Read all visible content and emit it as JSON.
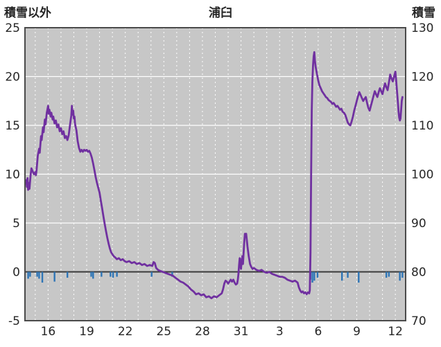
{
  "chart_data": {
    "type": "line",
    "title": "浦臼",
    "left_axis": {
      "label": "積雪以外",
      "min": -5,
      "max": 25,
      "ticks": [
        25,
        20,
        15,
        10,
        5,
        0,
        -5
      ]
    },
    "right_axis": {
      "label": "積雪",
      "min": 70,
      "max": 130,
      "ticks": [
        130,
        120,
        110,
        100,
        90,
        80,
        70
      ]
    },
    "axes_relation": "right_value = 2 * left_value + 80 (both axes share the same plot span)",
    "x_axis": {
      "tick_labels": [
        "16",
        "19",
        "22",
        "25",
        "28",
        "31",
        "3",
        "6",
        "9",
        "12"
      ],
      "tick_positions": [
        16,
        19,
        22,
        25,
        28,
        31,
        34,
        37,
        40,
        43
      ],
      "domain": [
        14.2,
        43.8
      ],
      "gridline_step": 1,
      "note": "day numbers; 16..31 = December, 3..12 = January (34=Jan3, 37=Jan6, 40=Jan9, 43=Jan12)"
    },
    "grid": {
      "vertical": "dashed white, daily",
      "horizontal": "solid white every 5 left-units",
      "zero_line": "dark solid at left-axis 0"
    },
    "series": [
      {
        "name": "積雪 (snow depth, read on right axis)",
        "color": "#7030a0",
        "units": "values stored in left-axis units; snow depth cm = 2*value + 80",
        "points": [
          [
            14.3,
            9.4
          ],
          [
            14.35,
            8.7
          ],
          [
            14.4,
            9.6
          ],
          [
            14.45,
            8.4
          ],
          [
            14.5,
            9.1
          ],
          [
            14.55,
            8.5
          ],
          [
            14.6,
            9.3
          ],
          [
            14.65,
            10.0
          ],
          [
            14.7,
            10.6
          ],
          [
            14.8,
            10.3
          ],
          [
            14.9,
            10.0
          ],
          [
            15.0,
            10.2
          ],
          [
            15.05,
            9.9
          ],
          [
            15.1,
            10.4
          ],
          [
            15.2,
            11.9
          ],
          [
            15.3,
            12.6
          ],
          [
            15.35,
            12.2
          ],
          [
            15.45,
            13.9
          ],
          [
            15.5,
            13.5
          ],
          [
            15.6,
            14.8
          ],
          [
            15.65,
            14.3
          ],
          [
            15.75,
            15.6
          ],
          [
            15.8,
            15.1
          ],
          [
            15.9,
            16.3
          ],
          [
            16.0,
            17.0
          ],
          [
            16.05,
            16.2
          ],
          [
            16.1,
            16.6
          ],
          [
            16.2,
            15.9
          ],
          [
            16.25,
            16.3
          ],
          [
            16.35,
            15.6
          ],
          [
            16.4,
            15.9
          ],
          [
            16.5,
            15.2
          ],
          [
            16.6,
            15.5
          ],
          [
            16.7,
            14.8
          ],
          [
            16.8,
            15.1
          ],
          [
            16.9,
            14.4
          ],
          [
            17.0,
            14.7
          ],
          [
            17.1,
            14.1
          ],
          [
            17.2,
            14.4
          ],
          [
            17.3,
            13.7
          ],
          [
            17.4,
            13.9
          ],
          [
            17.5,
            13.5
          ],
          [
            17.6,
            14.0
          ],
          [
            17.7,
            15.0
          ],
          [
            17.8,
            16.0
          ],
          [
            17.85,
            17.0
          ],
          [
            17.9,
            16.1
          ],
          [
            17.95,
            16.5
          ],
          [
            18.0,
            15.7
          ],
          [
            18.05,
            15.9
          ],
          [
            18.1,
            15.1
          ],
          [
            18.2,
            14.5
          ],
          [
            18.3,
            13.4
          ],
          [
            18.4,
            12.7
          ],
          [
            18.5,
            12.3
          ],
          [
            18.6,
            12.5
          ],
          [
            18.7,
            12.3
          ],
          [
            18.8,
            12.5
          ],
          [
            18.9,
            12.4
          ],
          [
            19.0,
            12.5
          ],
          [
            19.1,
            12.3
          ],
          [
            19.2,
            12.4
          ],
          [
            19.3,
            12.1
          ],
          [
            19.4,
            11.7
          ],
          [
            19.5,
            11.1
          ],
          [
            19.6,
            10.4
          ],
          [
            19.7,
            9.7
          ],
          [
            19.8,
            9.1
          ],
          [
            19.9,
            8.6
          ],
          [
            20.0,
            8.1
          ],
          [
            20.1,
            7.3
          ],
          [
            20.2,
            6.5
          ],
          [
            20.3,
            5.7
          ],
          [
            20.4,
            4.9
          ],
          [
            20.5,
            4.2
          ],
          [
            20.6,
            3.5
          ],
          [
            20.7,
            2.9
          ],
          [
            20.8,
            2.4
          ],
          [
            20.9,
            2.0
          ],
          [
            21.0,
            1.8
          ],
          [
            21.1,
            1.6
          ],
          [
            21.2,
            1.5
          ],
          [
            21.35,
            1.3
          ],
          [
            21.5,
            1.4
          ],
          [
            21.65,
            1.2
          ],
          [
            21.8,
            1.3
          ],
          [
            21.95,
            1.1
          ],
          [
            22.1,
            1.0
          ],
          [
            22.3,
            1.1
          ],
          [
            22.5,
            0.9
          ],
          [
            22.7,
            1.0
          ],
          [
            22.9,
            0.8
          ],
          [
            23.1,
            0.9
          ],
          [
            23.3,
            0.7
          ],
          [
            23.5,
            0.8
          ],
          [
            23.7,
            0.6
          ],
          [
            23.9,
            0.7
          ],
          [
            24.1,
            0.6
          ],
          [
            24.2,
            1.0
          ],
          [
            24.3,
            0.9
          ],
          [
            24.4,
            0.4
          ],
          [
            24.55,
            0.2
          ],
          [
            24.7,
            0.1
          ],
          [
            24.9,
            0.0
          ],
          [
            25.1,
            -0.1
          ],
          [
            25.3,
            -0.2
          ],
          [
            25.5,
            -0.3
          ],
          [
            25.7,
            -0.4
          ],
          [
            25.9,
            -0.6
          ],
          [
            26.1,
            -0.8
          ],
          [
            26.3,
            -1.0
          ],
          [
            26.5,
            -1.1
          ],
          [
            26.7,
            -1.3
          ],
          [
            26.9,
            -1.5
          ],
          [
            27.1,
            -1.8
          ],
          [
            27.3,
            -2.0
          ],
          [
            27.5,
            -2.3
          ],
          [
            27.7,
            -2.2
          ],
          [
            27.9,
            -2.4
          ],
          [
            28.1,
            -2.3
          ],
          [
            28.3,
            -2.6
          ],
          [
            28.5,
            -2.5
          ],
          [
            28.7,
            -2.7
          ],
          [
            28.9,
            -2.5
          ],
          [
            29.1,
            -2.6
          ],
          [
            29.3,
            -2.4
          ],
          [
            29.5,
            -2.2
          ],
          [
            29.6,
            -1.8
          ],
          [
            29.7,
            -1.2
          ],
          [
            29.8,
            -0.9
          ],
          [
            29.9,
            -1.0
          ],
          [
            30.0,
            -1.2
          ],
          [
            30.1,
            -1.0
          ],
          [
            30.2,
            -0.8
          ],
          [
            30.3,
            -1.0
          ],
          [
            30.4,
            -0.8
          ],
          [
            30.5,
            -1.1
          ],
          [
            30.6,
            -1.3
          ],
          [
            30.7,
            -1.2
          ],
          [
            30.75,
            -0.8
          ],
          [
            30.8,
            -0.2
          ],
          [
            30.85,
            0.7
          ],
          [
            30.9,
            1.4
          ],
          [
            30.95,
            0.7
          ],
          [
            31.0,
            0.3
          ],
          [
            31.05,
            1.1
          ],
          [
            31.1,
            1.6
          ],
          [
            31.15,
            0.8
          ],
          [
            31.2,
            1.9
          ],
          [
            31.25,
            3.0
          ],
          [
            31.3,
            3.9
          ],
          [
            31.35,
            3.7
          ],
          [
            31.4,
            3.9
          ],
          [
            31.45,
            3.3
          ],
          [
            31.5,
            2.6
          ],
          [
            31.6,
            1.6
          ],
          [
            31.7,
            0.8
          ],
          [
            31.8,
            0.5
          ],
          [
            31.9,
            0.3
          ],
          [
            32.0,
            0.4
          ],
          [
            32.2,
            0.2
          ],
          [
            32.4,
            0.1
          ],
          [
            32.6,
            0.2
          ],
          [
            32.8,
            0.0
          ],
          [
            33.0,
            -0.1
          ],
          [
            33.2,
            0.0
          ],
          [
            33.4,
            -0.2
          ],
          [
            33.6,
            -0.3
          ],
          [
            33.8,
            -0.4
          ],
          [
            34.0,
            -0.5
          ],
          [
            34.2,
            -0.5
          ],
          [
            34.4,
            -0.6
          ],
          [
            34.6,
            -0.8
          ],
          [
            34.8,
            -0.9
          ],
          [
            35.0,
            -1.0
          ],
          [
            35.2,
            -0.9
          ],
          [
            35.4,
            -1.1
          ],
          [
            35.5,
            -1.6
          ],
          [
            35.6,
            -1.9
          ],
          [
            35.7,
            -2.1
          ],
          [
            35.8,
            -2.0
          ],
          [
            35.9,
            -2.2
          ],
          [
            36.0,
            -2.1
          ],
          [
            36.1,
            -2.3
          ],
          [
            36.2,
            -2.1
          ],
          [
            36.3,
            -2.2
          ],
          [
            36.35,
            -1.9
          ],
          [
            36.4,
            2.0
          ],
          [
            36.45,
            10.0
          ],
          [
            36.5,
            16.5
          ],
          [
            36.55,
            19.5
          ],
          [
            36.6,
            21.2
          ],
          [
            36.65,
            22.1
          ],
          [
            36.7,
            22.5
          ],
          [
            36.75,
            21.6
          ],
          [
            36.8,
            21.0
          ],
          [
            36.9,
            20.3
          ],
          [
            37.0,
            19.6
          ],
          [
            37.1,
            19.1
          ],
          [
            37.2,
            18.8
          ],
          [
            37.3,
            18.5
          ],
          [
            37.4,
            18.3
          ],
          [
            37.5,
            18.1
          ],
          [
            37.6,
            17.9
          ],
          [
            37.7,
            17.8
          ],
          [
            37.8,
            17.6
          ],
          [
            37.9,
            17.5
          ],
          [
            38.0,
            17.4
          ],
          [
            38.1,
            17.2
          ],
          [
            38.2,
            17.3
          ],
          [
            38.3,
            17.1
          ],
          [
            38.4,
            16.9
          ],
          [
            38.5,
            17.0
          ],
          [
            38.6,
            16.8
          ],
          [
            38.7,
            16.6
          ],
          [
            38.8,
            16.7
          ],
          [
            38.9,
            16.4
          ],
          [
            39.0,
            16.3
          ],
          [
            39.1,
            16.1
          ],
          [
            39.2,
            15.7
          ],
          [
            39.3,
            15.3
          ],
          [
            39.4,
            15.1
          ],
          [
            39.5,
            15.0
          ],
          [
            39.6,
            15.4
          ],
          [
            39.7,
            15.9
          ],
          [
            39.8,
            16.5
          ],
          [
            39.9,
            17.0
          ],
          [
            40.0,
            17.5
          ],
          [
            40.1,
            18.0
          ],
          [
            40.2,
            18.4
          ],
          [
            40.3,
            18.1
          ],
          [
            40.4,
            17.8
          ],
          [
            40.5,
            17.5
          ],
          [
            40.6,
            17.7
          ],
          [
            40.7,
            17.9
          ],
          [
            40.8,
            17.3
          ],
          [
            40.9,
            16.8
          ],
          [
            41.0,
            16.5
          ],
          [
            41.1,
            17.0
          ],
          [
            41.2,
            17.5
          ],
          [
            41.3,
            18.0
          ],
          [
            41.4,
            18.5
          ],
          [
            41.5,
            18.2
          ],
          [
            41.6,
            17.9
          ],
          [
            41.7,
            18.4
          ],
          [
            41.8,
            18.8
          ],
          [
            41.9,
            18.5
          ],
          [
            42.0,
            18.2
          ],
          [
            42.1,
            18.8
          ],
          [
            42.2,
            19.3
          ],
          [
            42.3,
            18.9
          ],
          [
            42.4,
            18.6
          ],
          [
            42.5,
            19.4
          ],
          [
            42.6,
            20.2
          ],
          [
            42.7,
            19.8
          ],
          [
            42.8,
            19.5
          ],
          [
            42.9,
            20.0
          ],
          [
            43.0,
            20.5
          ],
          [
            43.05,
            19.8
          ],
          [
            43.1,
            19.0
          ],
          [
            43.15,
            18.2
          ],
          [
            43.2,
            17.3
          ],
          [
            43.25,
            16.4
          ],
          [
            43.3,
            15.8
          ],
          [
            43.35,
            15.5
          ],
          [
            43.4,
            15.7
          ],
          [
            43.45,
            16.6
          ],
          [
            43.5,
            17.5
          ],
          [
            43.55,
            17.9
          ]
        ]
      }
    ],
    "bars": {
      "name": "積雪以外 tick marks below zero (left axis)",
      "color": "#2e75b6",
      "items": [
        [
          14.45,
          0.7
        ],
        [
          14.6,
          0.5
        ],
        [
          15.15,
          0.5
        ],
        [
          15.3,
          0.7
        ],
        [
          15.55,
          1.1
        ],
        [
          16.5,
          1.0
        ],
        [
          17.5,
          0.6
        ],
        [
          19.35,
          0.5
        ],
        [
          19.5,
          0.7
        ],
        [
          20.15,
          0.5
        ],
        [
          20.85,
          0.5
        ],
        [
          21.05,
          0.6
        ],
        [
          21.35,
          0.5
        ],
        [
          24.05,
          0.5
        ],
        [
          25.65,
          0.5
        ],
        [
          36.4,
          0.8
        ],
        [
          36.55,
          1.1
        ],
        [
          36.7,
          0.9
        ],
        [
          36.95,
          0.6
        ],
        [
          38.85,
          0.9
        ],
        [
          39.3,
          0.6
        ],
        [
          40.15,
          1.1
        ],
        [
          42.3,
          0.6
        ],
        [
          42.5,
          0.5
        ],
        [
          43.35,
          0.9
        ],
        [
          43.55,
          0.6
        ]
      ]
    },
    "colors": {
      "plot_bg": "#c7c7c7",
      "grid": "#ffffff",
      "zero_line": "#3a3a3a",
      "frame": "#4a4a4a",
      "text": "#262626",
      "line": "#7030a0",
      "bars": "#2e75b6"
    }
  }
}
